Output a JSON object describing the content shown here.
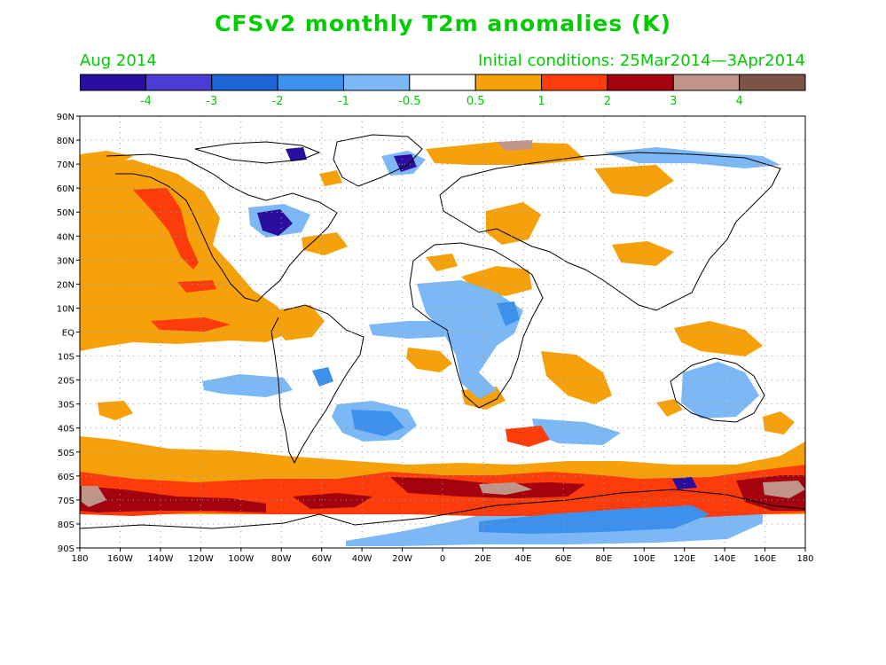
{
  "title": "CFSv2 monthly T2m anomalies (K)",
  "valid_month": "Aug 2014",
  "initial_conditions": "Initial conditions: 25Mar2014—3Apr2014",
  "colorbar": {
    "colors": [
      "#2a0e9e",
      "#4a3cd4",
      "#1e64d6",
      "#3c90ee",
      "#7cb8f6",
      "#ffffff",
      "#f7a10a",
      "#fe3b0b",
      "#a3020e",
      "#c09488",
      "#7b5446"
    ],
    "labels": [
      "-4",
      "-3",
      "-2",
      "-1",
      "-0.5",
      "0.5",
      "1",
      "2",
      "3",
      "4"
    ]
  },
  "map": {
    "lat_labels": [
      "90N",
      "80N",
      "70N",
      "60N",
      "50N",
      "40N",
      "30N",
      "20N",
      "10N",
      "EQ",
      "10S",
      "20S",
      "30S",
      "40S",
      "50S",
      "60S",
      "70S",
      "80S",
      "90S"
    ],
    "lon_labels": [
      "180",
      "160W",
      "140W",
      "120W",
      "100W",
      "80W",
      "60W",
      "40W",
      "20W",
      "0",
      "20E",
      "40E",
      "60E",
      "80E",
      "100E",
      "120E",
      "140E",
      "160E",
      "180"
    ],
    "colors": {
      "warm_light": "#f7a10a",
      "warm_mid": "#fe3b0b",
      "warm_strong": "#a3020e",
      "warm_extreme": "#c09488",
      "cool_light": "#7cb8f6",
      "cool_mid": "#3c90ee",
      "cool_strong": "#1e64d6",
      "cool_extreme": "#2a0e9e",
      "coastline": "#000000",
      "gridline": "#999999"
    }
  }
}
